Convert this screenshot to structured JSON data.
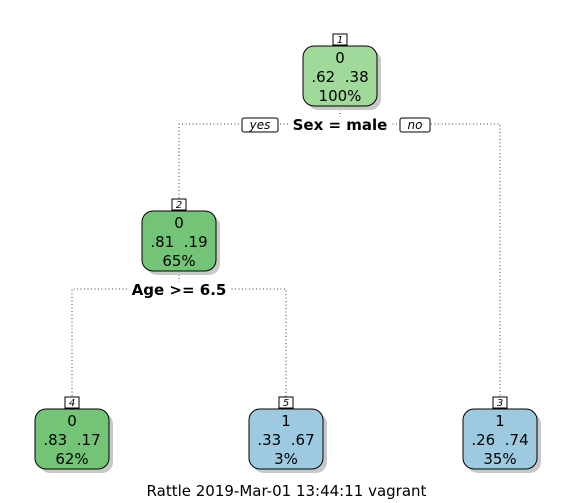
{
  "tree": {
    "colors": {
      "class0_dark": "#73c476",
      "class0_light": "#a1d99b",
      "class1": "#9ecae1",
      "shadow": "#c8c8c8",
      "edge": "#444444"
    },
    "nodes": [
      {
        "id": "n1",
        "number": "1",
        "class": "0",
        "probs": ".62  .38",
        "pct": "100%",
        "fill": "#a1d99b"
      },
      {
        "id": "n2",
        "number": "2",
        "class": "0",
        "probs": ".81  .19",
        "pct": "65%",
        "fill": "#73c476"
      },
      {
        "id": "n3",
        "number": "3",
        "class": "1",
        "probs": ".26  .74",
        "pct": "35%",
        "fill": "#9ecae1"
      },
      {
        "id": "n4",
        "number": "4",
        "class": "0",
        "probs": ".83  .17",
        "pct": "62%",
        "fill": "#73c476"
      },
      {
        "id": "n5",
        "number": "5",
        "class": "1",
        "probs": ".33  .67",
        "pct": "3%",
        "fill": "#9ecae1"
      }
    ],
    "splits": [
      {
        "id": "s1",
        "label": "Sex = male",
        "yes_label": "yes",
        "no_label": "no"
      },
      {
        "id": "s2",
        "label": "Age >= 6.5"
      }
    ]
  },
  "caption": "Rattle 2019-Mar-01 13:44:11 vagrant"
}
